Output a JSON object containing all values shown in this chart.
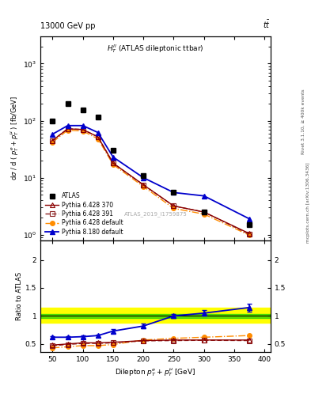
{
  "atlas_x": [
    50,
    75,
    100,
    125,
    150,
    200,
    250,
    300,
    375
  ],
  "atlas_y": [
    100,
    200,
    155,
    115,
    30,
    11,
    5.5,
    2.5,
    1.5
  ],
  "py6_370_x": [
    50,
    75,
    100,
    125,
    150,
    200,
    250,
    300,
    375
  ],
  "py6_370_y": [
    45,
    72,
    70,
    52,
    18,
    7.5,
    3.2,
    2.5,
    1.05
  ],
  "py6_391_x": [
    50,
    75,
    100,
    125,
    150,
    200,
    250,
    300,
    375
  ],
  "py6_391_y": [
    45,
    72,
    70,
    52,
    18,
    7.5,
    3.2,
    2.5,
    1.02
  ],
  "py6_def_x": [
    50,
    75,
    100,
    125,
    150,
    200,
    250,
    300,
    375
  ],
  "py6_def_y": [
    42,
    68,
    66,
    48,
    17,
    7.0,
    2.9,
    2.3,
    0.98
  ],
  "py8_def_x": [
    50,
    75,
    100,
    125,
    150,
    200,
    250,
    300,
    375
  ],
  "py8_def_y": [
    58,
    82,
    82,
    62,
    23,
    10,
    5.5,
    4.8,
    1.9
  ],
  "ratio_py6_370_x": [
    50,
    75,
    100,
    125,
    150,
    200,
    250,
    300,
    375
  ],
  "ratio_py6_370_y": [
    0.48,
    0.5,
    0.52,
    0.52,
    0.53,
    0.56,
    0.57,
    0.57,
    0.57
  ],
  "ratio_py6_391_x": [
    50,
    75,
    100,
    125,
    150,
    200,
    250,
    300,
    375
  ],
  "ratio_py6_391_y": [
    0.47,
    0.49,
    0.51,
    0.51,
    0.52,
    0.555,
    0.56,
    0.565,
    0.56
  ],
  "ratio_py6_def_x": [
    50,
    75,
    100,
    125,
    150,
    200,
    250,
    300,
    375
  ],
  "ratio_py6_def_y": [
    0.43,
    0.45,
    0.47,
    0.47,
    0.49,
    0.57,
    0.6,
    0.62,
    0.65
  ],
  "ratio_py8_def_x": [
    50,
    75,
    100,
    125,
    150,
    200,
    250,
    300,
    375
  ],
  "ratio_py8_def_y": [
    0.62,
    0.62,
    0.63,
    0.65,
    0.73,
    0.82,
    1.0,
    1.05,
    1.15
  ],
  "ratio_py8_def_yerr": [
    0.02,
    0.02,
    0.02,
    0.02,
    0.03,
    0.04,
    0.04,
    0.05,
    0.07
  ],
  "green_band_lo": 0.96,
  "green_band_hi": 1.04,
  "yellow_band_lo": 0.88,
  "yellow_band_hi": 1.14,
  "color_atlas": "#000000",
  "color_py6_370": "#8B0000",
  "color_py6_391": "#8B2020",
  "color_py6_def": "#FF8C00",
  "color_py8_def": "#0000CC",
  "ylim_main": [
    0.8,
    3000
  ],
  "ylim_ratio": [
    0.35,
    2.35
  ],
  "xlim": [
    30,
    410
  ],
  "xlabel": "Dilepton $p_T^e + p_T^{\\mu}$ [GeV]",
  "ylabel_main": "d$\\sigma$ / d ( $p_T^e + p_T^{\\mu}$ ) [fb/GeV]",
  "ylabel_ratio": "Ratio to ATLAS",
  "title_left": "13000 GeV pp",
  "title_right": "tt",
  "panel_label": "$H_T^{ll}$ (ATLAS dileptonic ttbar)",
  "watermark": "ATLAS_2019_I1759875",
  "right_text1": "Rivet 3.1.10, ≥ 400k events",
  "right_text2": "mcplots.cern.ch [arXiv:1306.3436]"
}
